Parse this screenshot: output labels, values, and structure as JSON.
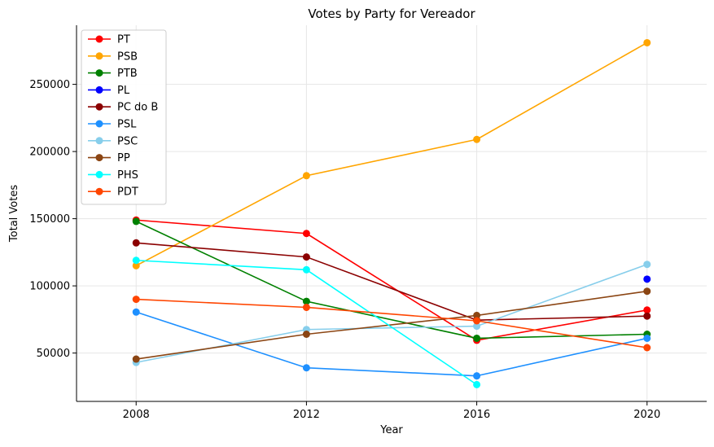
{
  "chart_data": {
    "type": "line",
    "title": "Votes by Party for Vereador",
    "xlabel": "Year",
    "ylabel": "Total Votes",
    "x": [
      2008,
      2012,
      2016,
      2020
    ],
    "x_ticks": [
      "2008",
      "2012",
      "2016",
      "2020"
    ],
    "y_ticks": [
      "50000",
      "100000",
      "150000",
      "200000",
      "250000"
    ],
    "y_tick_values": [
      50000,
      100000,
      150000,
      200000,
      250000
    ],
    "ylim": [
      14000,
      294000
    ],
    "xlim": [
      2006.6,
      2021.4
    ],
    "grid": true,
    "legend_position": "top-left",
    "series": [
      {
        "name": "PT",
        "color": "#ff0000",
        "values": [
          149000,
          139000,
          59500,
          82000
        ]
      },
      {
        "name": "PSB",
        "color": "#ffa500",
        "values": [
          115000,
          182000,
          209000,
          281000
        ]
      },
      {
        "name": "PTB",
        "color": "#008000",
        "values": [
          148000,
          88500,
          61000,
          64000
        ]
      },
      {
        "name": "PL",
        "color": "#0000ff",
        "values": [
          null,
          null,
          null,
          105000
        ]
      },
      {
        "name": "PC do B",
        "color": "#8b0000",
        "values": [
          132000,
          121500,
          74500,
          77500
        ]
      },
      {
        "name": "PSL",
        "color": "#1e90ff",
        "values": [
          80500,
          39000,
          33000,
          61000
        ]
      },
      {
        "name": "PSC",
        "color": "#87ceeb",
        "values": [
          43000,
          67500,
          70000,
          116000
        ]
      },
      {
        "name": "PP",
        "color": "#8b4513",
        "values": [
          45500,
          64000,
          78000,
          96000
        ]
      },
      {
        "name": "PHS",
        "color": "#00ffff",
        "values": [
          119000,
          112000,
          26500,
          null
        ]
      },
      {
        "name": "PDT",
        "color": "#ff4500",
        "values": [
          90000,
          84000,
          74000,
          54000
        ]
      }
    ]
  }
}
